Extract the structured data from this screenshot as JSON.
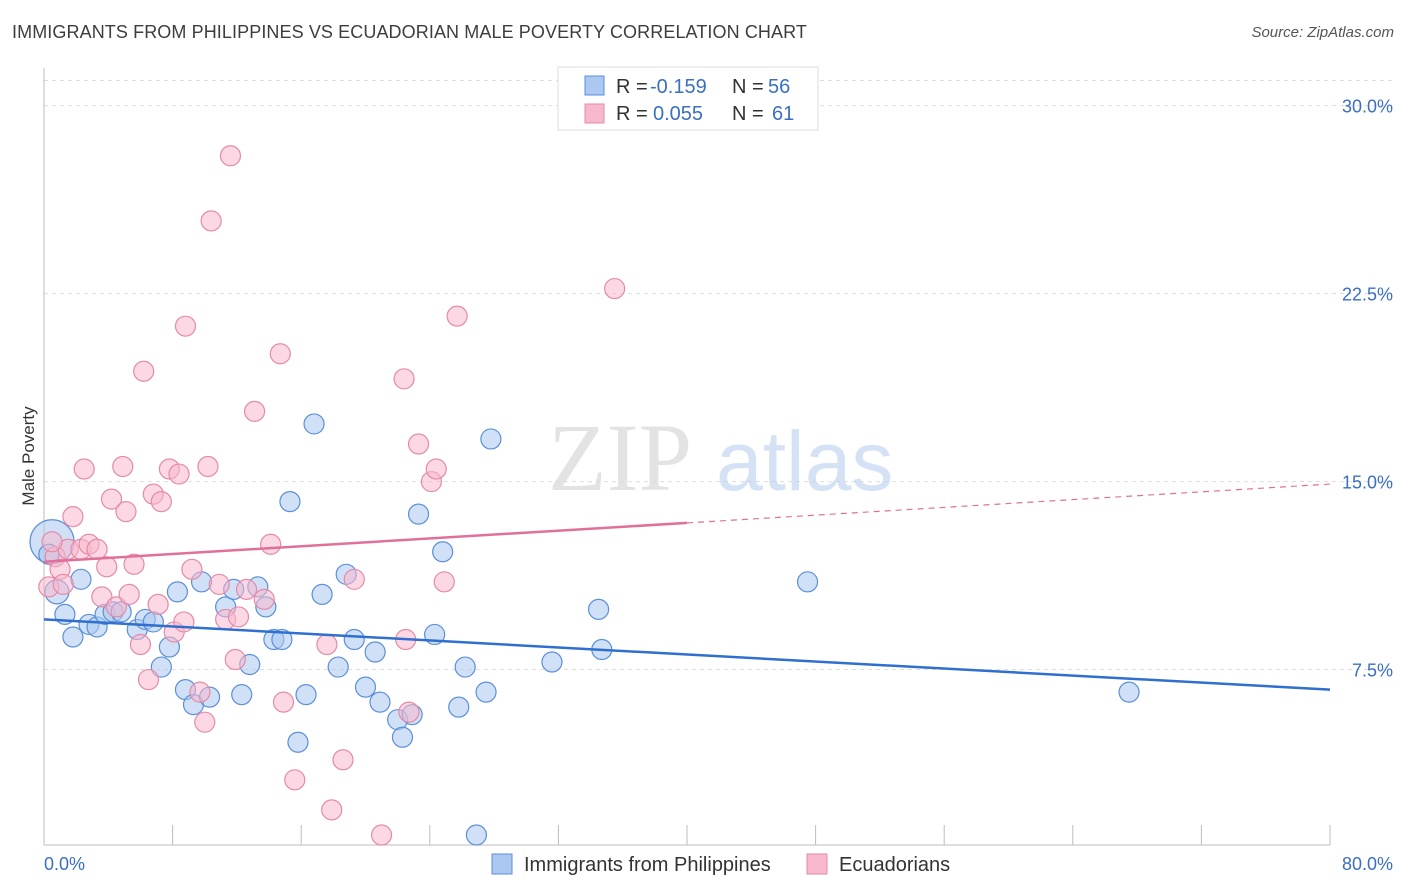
{
  "title": "IMMIGRANTS FROM PHILIPPINES VS ECUADORIAN MALE POVERTY CORRELATION CHART",
  "source": "Source: ZipAtlas.com",
  "watermark": {
    "zip": "ZIP",
    "atlas": "atlas"
  },
  "colors": {
    "blue_fill": "#aac8f0",
    "blue_stroke": "#5b8fd8",
    "blue_line": "#2f6fd0",
    "pink_fill": "#f7b8cc",
    "pink_stroke": "#e58aa8",
    "pink_line": "#e0709a",
    "grid": "#dddddd",
    "tick_text": "#3a6fc2",
    "value_text": "#3a6fc2"
  },
  "legend": {
    "rows": [
      {
        "r_label": "R =",
        "r_value": "-0.159",
        "n_label": "N =",
        "n_value": "56"
      },
      {
        "r_label": "R =",
        "r_value": "0.055",
        "n_label": "N =",
        "n_value": "61"
      }
    ]
  },
  "chart_data": {
    "type": "scatter",
    "title": "IMMIGRANTS FROM PHILIPPINES VS ECUADORIAN MALE POVERTY CORRELATION CHART",
    "xlabel": "",
    "ylabel": "Male Poverty",
    "xlim": [
      0,
      80
    ],
    "ylim": [
      0.5,
      31.5
    ],
    "x_tick_labels": [
      "0.0%",
      "80.0%"
    ],
    "y_ticks": [
      7.5,
      15.0,
      22.5,
      30.0
    ],
    "y_tick_labels": [
      "7.5%",
      "15.0%",
      "22.5%",
      "30.0%"
    ],
    "grid": true,
    "legend_position": "top-center",
    "series": [
      {
        "name": "Immigrants from Philippines",
        "color": "#aac8f0",
        "trend": {
          "x": [
            0,
            80
          ],
          "y": [
            9.5,
            6.7
          ],
          "dashed_from": null
        },
        "points": [
          [
            0.5,
            12.6,
            22
          ],
          [
            0.8,
            10.6,
            12
          ],
          [
            1.3,
            9.7,
            10
          ],
          [
            1.8,
            8.8,
            10
          ],
          [
            2.3,
            11.1,
            10
          ],
          [
            2.8,
            9.3,
            10
          ],
          [
            3.3,
            9.2,
            10
          ],
          [
            3.8,
            9.7,
            10
          ],
          [
            4.3,
            9.8,
            10
          ],
          [
            4.8,
            9.8,
            10
          ],
          [
            5.8,
            9.1,
            10
          ],
          [
            6.3,
            9.5,
            10
          ],
          [
            6.8,
            9.4,
            10
          ],
          [
            7.3,
            7.6,
            10
          ],
          [
            7.8,
            8.4,
            10
          ],
          [
            8.3,
            10.6,
            10
          ],
          [
            8.8,
            6.7,
            10
          ],
          [
            9.3,
            6.1,
            10
          ],
          [
            9.8,
            11.0,
            10
          ],
          [
            10.3,
            6.4,
            10
          ],
          [
            11.3,
            10.0,
            10
          ],
          [
            11.8,
            10.7,
            10
          ],
          [
            12.3,
            6.5,
            10
          ],
          [
            12.8,
            7.7,
            10
          ],
          [
            13.3,
            10.8,
            10
          ],
          [
            13.8,
            10.0,
            10
          ],
          [
            14.3,
            8.7,
            10
          ],
          [
            14.8,
            8.7,
            10
          ],
          [
            15.3,
            14.2,
            10
          ],
          [
            15.8,
            4.6,
            10
          ],
          [
            16.3,
            6.5,
            10
          ],
          [
            16.8,
            17.3,
            10
          ],
          [
            17.3,
            10.5,
            10
          ],
          [
            18.3,
            7.6,
            10
          ],
          [
            18.8,
            11.3,
            10
          ],
          [
            19.3,
            8.7,
            10
          ],
          [
            20.0,
            6.8,
            10
          ],
          [
            20.6,
            8.2,
            10
          ],
          [
            20.9,
            6.2,
            10
          ],
          [
            22.0,
            5.5,
            10
          ],
          [
            22.3,
            4.8,
            10
          ],
          [
            22.9,
            5.7,
            10
          ],
          [
            23.3,
            13.7,
            10
          ],
          [
            24.3,
            8.9,
            10
          ],
          [
            24.8,
            12.2,
            10
          ],
          [
            25.8,
            6.0,
            10
          ],
          [
            26.2,
            7.6,
            10
          ],
          [
            26.9,
            0.9,
            10
          ],
          [
            27.5,
            6.6,
            10
          ],
          [
            27.8,
            16.7,
            10
          ],
          [
            31.6,
            7.8,
            10
          ],
          [
            34.5,
            9.9,
            10
          ],
          [
            34.7,
            8.3,
            10
          ],
          [
            47.5,
            11.0,
            10
          ],
          [
            67.5,
            6.6,
            10
          ],
          [
            0.3,
            12.1,
            10
          ]
        ]
      },
      {
        "name": "Ecuadorians",
        "color": "#f7b8cc",
        "trend": {
          "x": [
            0,
            80
          ],
          "y": [
            11.8,
            14.9
          ],
          "dashed_from": 40
        },
        "points": [
          [
            0.3,
            10.8,
            10
          ],
          [
            0.7,
            12.0,
            10
          ],
          [
            1.0,
            11.5,
            10
          ],
          [
            1.5,
            12.3,
            10
          ],
          [
            1.8,
            13.6,
            10
          ],
          [
            2.3,
            12.3,
            10
          ],
          [
            2.5,
            15.5,
            10
          ],
          [
            2.8,
            12.5,
            10
          ],
          [
            3.3,
            12.3,
            10
          ],
          [
            3.6,
            10.4,
            10
          ],
          [
            3.9,
            11.6,
            10
          ],
          [
            4.2,
            14.3,
            10
          ],
          [
            4.5,
            10.0,
            10
          ],
          [
            4.9,
            15.6,
            10
          ],
          [
            5.1,
            13.8,
            10
          ],
          [
            5.3,
            10.5,
            10
          ],
          [
            5.6,
            11.7,
            10
          ],
          [
            6.0,
            8.5,
            10
          ],
          [
            6.2,
            19.4,
            10
          ],
          [
            6.5,
            7.1,
            10
          ],
          [
            6.8,
            14.5,
            10
          ],
          [
            7.1,
            10.1,
            10
          ],
          [
            7.3,
            14.2,
            10
          ],
          [
            7.8,
            15.5,
            10
          ],
          [
            8.1,
            9.0,
            10
          ],
          [
            8.4,
            15.3,
            10
          ],
          [
            8.7,
            9.4,
            10
          ],
          [
            8.8,
            21.2,
            10
          ],
          [
            9.2,
            11.5,
            10
          ],
          [
            9.7,
            6.6,
            10
          ],
          [
            10.0,
            5.4,
            10
          ],
          [
            10.2,
            15.6,
            10
          ],
          [
            10.4,
            25.4,
            10
          ],
          [
            10.9,
            10.9,
            10
          ],
          [
            11.3,
            9.5,
            10
          ],
          [
            11.6,
            28.0,
            10
          ],
          [
            11.9,
            7.9,
            10
          ],
          [
            12.1,
            9.6,
            10
          ],
          [
            12.6,
            10.7,
            10
          ],
          [
            13.1,
            17.8,
            10
          ],
          [
            13.7,
            10.3,
            10
          ],
          [
            14.1,
            12.5,
            10
          ],
          [
            14.7,
            20.1,
            10
          ],
          [
            14.9,
            6.2,
            10
          ],
          [
            15.6,
            3.1,
            10
          ],
          [
            17.6,
            8.5,
            10
          ],
          [
            17.9,
            1.9,
            10
          ],
          [
            18.6,
            3.9,
            10
          ],
          [
            19.3,
            11.1,
            10
          ],
          [
            21.0,
            0.9,
            10
          ],
          [
            22.4,
            19.1,
            10
          ],
          [
            22.5,
            8.7,
            10
          ],
          [
            22.7,
            5.8,
            10
          ],
          [
            23.3,
            16.5,
            10
          ],
          [
            24.1,
            15.0,
            10
          ],
          [
            24.4,
            15.5,
            10
          ],
          [
            24.9,
            11.0,
            10
          ],
          [
            25.7,
            21.6,
            10
          ],
          [
            35.5,
            22.7,
            10
          ],
          [
            0.5,
            12.6,
            10
          ],
          [
            1.2,
            10.9,
            10
          ]
        ]
      }
    ]
  }
}
